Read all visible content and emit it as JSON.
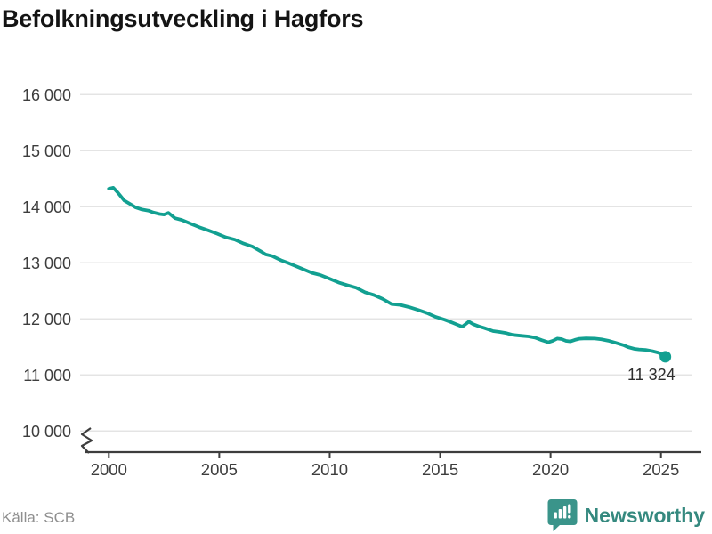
{
  "header": {
    "title": "Befolkningsutveckling i Hagfors"
  },
  "footer": {
    "source": "Källa: SCB",
    "brand": "Newsworthy"
  },
  "chart_data": {
    "type": "line",
    "title": "Befolkningsutveckling i Hagfors",
    "xlabel": "",
    "ylabel": "",
    "grid": "horizontal",
    "legend": "none",
    "x_ticks": [
      "2000",
      "2005",
      "2010",
      "2015",
      "2020",
      "2025"
    ],
    "x_tick_years": [
      2000,
      2005,
      2010,
      2015,
      2020,
      2025
    ],
    "y_tick_labels": [
      "10 000",
      "11 000",
      "12 000",
      "13 000",
      "14 000",
      "15 000",
      "16 000"
    ],
    "y_tick_values": [
      10000,
      11000,
      12000,
      13000,
      14000,
      15000,
      16000
    ],
    "ylim_displayed": [
      10000,
      16000
    ],
    "axis_break_at_bottom": true,
    "xlim": [
      1998.7,
      2026.8
    ],
    "end_label": "11 324",
    "end_value": 11324,
    "colors": {
      "line": "#12a091",
      "marker": "#12a091",
      "grid": "#e4e4e4",
      "axis": "#3d3d3d",
      "tick_text": "#3d3d3d",
      "title_text": "#141414",
      "source_text": "#8f8f8f",
      "logo": "#3a948a",
      "logo_text": "#35897f",
      "end_label_text": "#2e2e2e"
    },
    "series": [
      {
        "points": [
          [
            2000.0,
            14320
          ],
          [
            2000.2,
            14340
          ],
          [
            2000.4,
            14255
          ],
          [
            2000.7,
            14110
          ],
          [
            2001.0,
            14040
          ],
          [
            2001.2,
            13990
          ],
          [
            2001.5,
            13950
          ],
          [
            2001.8,
            13930
          ],
          [
            2002.0,
            13900
          ],
          [
            2002.3,
            13870
          ],
          [
            2002.5,
            13860
          ],
          [
            2002.7,
            13890
          ],
          [
            2003.0,
            13795
          ],
          [
            2003.3,
            13765
          ],
          [
            2003.7,
            13700
          ],
          [
            2004.1,
            13635
          ],
          [
            2004.5,
            13580
          ],
          [
            2004.9,
            13520
          ],
          [
            2005.3,
            13455
          ],
          [
            2005.7,
            13415
          ],
          [
            2006.1,
            13345
          ],
          [
            2006.5,
            13290
          ],
          [
            2006.9,
            13200
          ],
          [
            2007.1,
            13150
          ],
          [
            2007.4,
            13120
          ],
          [
            2007.8,
            13045
          ],
          [
            2008.1,
            13000
          ],
          [
            2008.4,
            12950
          ],
          [
            2008.8,
            12885
          ],
          [
            2009.2,
            12820
          ],
          [
            2009.6,
            12780
          ],
          [
            2010.0,
            12715
          ],
          [
            2010.4,
            12650
          ],
          [
            2010.8,
            12600
          ],
          [
            2011.2,
            12555
          ],
          [
            2011.6,
            12475
          ],
          [
            2012.0,
            12425
          ],
          [
            2012.4,
            12355
          ],
          [
            2012.8,
            12265
          ],
          [
            2013.2,
            12250
          ],
          [
            2013.6,
            12210
          ],
          [
            2014.0,
            12160
          ],
          [
            2014.4,
            12105
          ],
          [
            2014.8,
            12035
          ],
          [
            2015.2,
            11985
          ],
          [
            2015.6,
            11925
          ],
          [
            2016.0,
            11860
          ],
          [
            2016.3,
            11950
          ],
          [
            2016.5,
            11905
          ],
          [
            2016.8,
            11860
          ],
          [
            2017.0,
            11836
          ],
          [
            2017.4,
            11783
          ],
          [
            2017.7,
            11767
          ],
          [
            2018.0,
            11746
          ],
          [
            2018.3,
            11715
          ],
          [
            2018.7,
            11698
          ],
          [
            2019.0,
            11687
          ],
          [
            2019.3,
            11665
          ],
          [
            2019.6,
            11620
          ],
          [
            2019.9,
            11582
          ],
          [
            2020.1,
            11610
          ],
          [
            2020.3,
            11650
          ],
          [
            2020.5,
            11640
          ],
          [
            2020.7,
            11608
          ],
          [
            2020.9,
            11598
          ],
          [
            2021.1,
            11625
          ],
          [
            2021.3,
            11646
          ],
          [
            2021.6,
            11652
          ],
          [
            2022.0,
            11650
          ],
          [
            2022.3,
            11635
          ],
          [
            2022.6,
            11612
          ],
          [
            2022.9,
            11580
          ],
          [
            2023.0,
            11567
          ],
          [
            2023.3,
            11532
          ],
          [
            2023.5,
            11497
          ],
          [
            2023.8,
            11465
          ],
          [
            2024.0,
            11455
          ],
          [
            2024.3,
            11448
          ],
          [
            2024.6,
            11425
          ],
          [
            2024.9,
            11395
          ],
          [
            2025.0,
            11365
          ],
          [
            2025.2,
            11324
          ]
        ]
      }
    ]
  }
}
